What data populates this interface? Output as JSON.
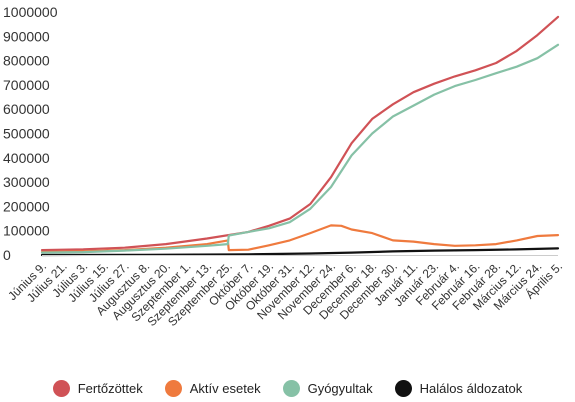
{
  "chart_data": {
    "type": "line",
    "title": "",
    "xlabel": "",
    "ylabel": "",
    "ylim": [
      0,
      1000000
    ],
    "yticks": [
      0,
      100000,
      200000,
      300000,
      400000,
      500000,
      600000,
      700000,
      800000,
      900000,
      1000000
    ],
    "ytick_labels": [
      "0",
      "100000",
      "200000",
      "300000",
      "400000",
      "500000",
      "600000",
      "700000",
      "800000",
      "900000",
      "1000000"
    ],
    "x_tick_labels": [
      "Június 9.",
      "Július 21.",
      "Július 3.",
      "Július 15.",
      "Július 27.",
      "Augusztus 8.",
      "Augusztus 20.",
      "Szeptember 1.",
      "Szeptember 13.",
      "Szeptember 25.",
      "Október 7.",
      "Október 19.",
      "Október 31.",
      "November 12.",
      "November 24.",
      "December 6.",
      "December 18.",
      "December 30.",
      "Január 11.",
      "Január 23.",
      "Február 4.",
      "Február 16.",
      "Február 28.",
      "Március 12.",
      "Március 24.",
      "Április 5."
    ],
    "grid": false,
    "legend_position": "bottom",
    "series": [
      {
        "name": "Fertőzöttek",
        "color": "#d05256",
        "x": [
          0,
          2,
          4,
          6,
          8,
          10,
          11,
          12,
          13,
          14,
          15,
          16,
          17,
          18,
          19,
          20,
          21,
          22,
          23,
          24,
          25
        ],
        "values": [
          20000,
          23000,
          30000,
          45000,
          68000,
          95000,
          120000,
          150000,
          210000,
          320000,
          460000,
          560000,
          620000,
          670000,
          705000,
          735000,
          760000,
          790000,
          840000,
          905000,
          980000
        ]
      },
      {
        "name": "Aktív esetek",
        "color": "#ef7a3e",
        "x": [
          0,
          2,
          4,
          6,
          8,
          9,
          9.05,
          10,
          11,
          12,
          13,
          14,
          14.5,
          15,
          16,
          17,
          18,
          19,
          20,
          21,
          22,
          23,
          24,
          25
        ],
        "values": [
          12000,
          15000,
          20000,
          30000,
          45000,
          60000,
          20000,
          22000,
          40000,
          60000,
          90000,
          122000,
          120000,
          105000,
          90000,
          60000,
          55000,
          45000,
          38000,
          40000,
          45000,
          60000,
          78000,
          82000
        ]
      },
      {
        "name": "Gyógyultak",
        "color": "#86c1a6",
        "x": [
          0,
          2,
          4,
          6,
          8,
          9,
          9.05,
          10,
          11,
          12,
          13,
          14,
          15,
          16,
          17,
          18,
          19,
          20,
          21,
          22,
          23,
          24,
          25
        ],
        "values": [
          10000,
          12000,
          18000,
          26000,
          38000,
          45000,
          80000,
          95000,
          110000,
          135000,
          190000,
          280000,
          410000,
          500000,
          570000,
          615000,
          660000,
          695000,
          720000,
          748000,
          775000,
          810000,
          865000
        ]
      },
      {
        "name": "Halálos áldozatok",
        "color": "#111111",
        "x": [
          0,
          5,
          10,
          13,
          15,
          17,
          19,
          21,
          23,
          25
        ],
        "values": [
          0,
          1000,
          3000,
          6000,
          10000,
          15000,
          18000,
          20000,
          23000,
          27000
        ]
      }
    ]
  }
}
